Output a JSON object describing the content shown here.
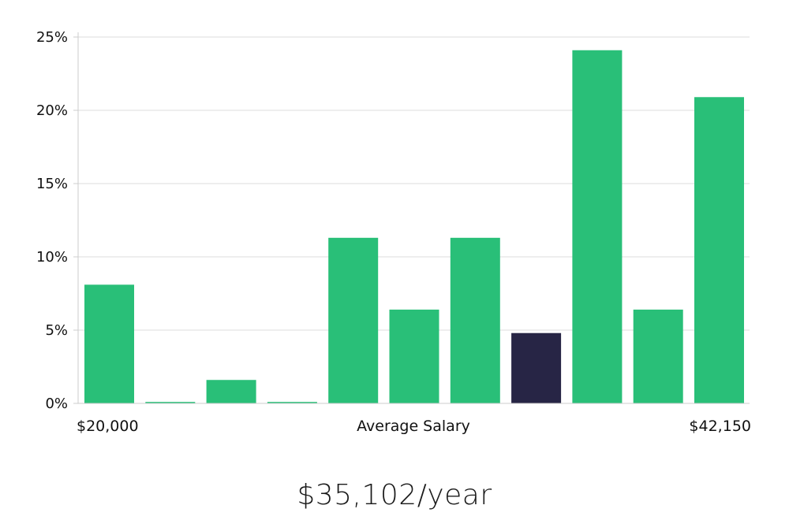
{
  "chart_data": {
    "type": "bar",
    "title": "",
    "xlabel": "Average Salary",
    "ylabel": "",
    "x_min_label": "$20,000",
    "x_max_label": "$42,150",
    "ylim": [
      0,
      25
    ],
    "yticks": [
      0,
      5,
      10,
      15,
      20,
      25
    ],
    "ytick_suffix": "%",
    "grid": true,
    "values": [
      8.1,
      0.1,
      1.6,
      0.1,
      11.3,
      6.4,
      11.3,
      4.8,
      24.1,
      6.4,
      20.9
    ],
    "highlight_index": 7,
    "colors": {
      "bar": "#29bf78",
      "highlight": "#272545",
      "grid": "#e3e3e3",
      "axis": "#cccccc"
    }
  },
  "summary": {
    "salary": "$35,102/year"
  }
}
